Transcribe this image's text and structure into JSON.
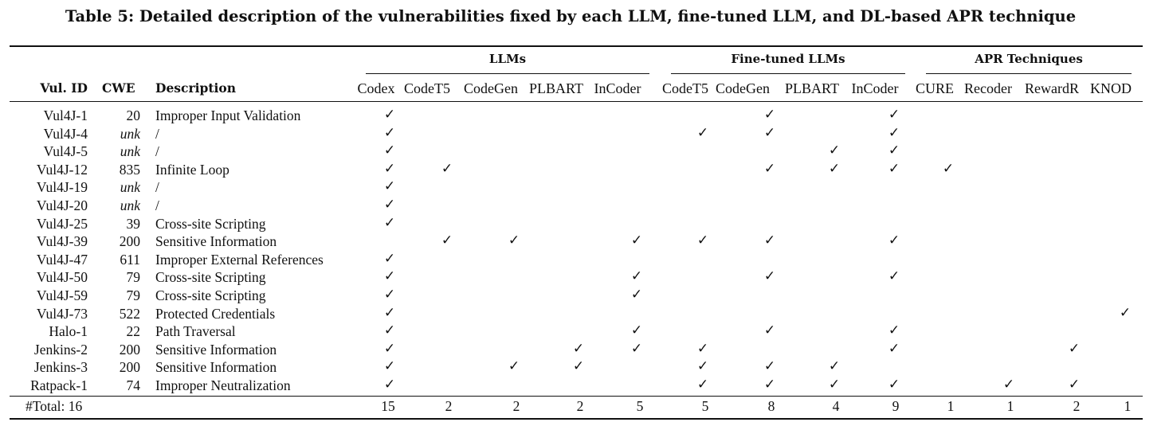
{
  "caption": "Table 5: Detailed description of the vulnerabilities fixed by each LLM, fine-tuned LLM, and DL-based APR technique",
  "groups": {
    "llms": "LLMs",
    "finetuned": "Fine-tuned LLMs",
    "apr": "APR Techniques"
  },
  "headers": {
    "vul_id": "Vul. ID",
    "cwe": "CWE",
    "description": "Description",
    "tools": [
      "Codex",
      "CodeT5",
      "CodeGen",
      "PLBART",
      "InCoder",
      "CodeT5",
      "CodeGen",
      "PLBART",
      "InCoder",
      "CURE",
      "Recoder",
      "RewardR",
      "KNOD"
    ]
  },
  "check_glyph": "✓",
  "rows": [
    {
      "id": "Vul4J-1",
      "cwe": "20",
      "unk": false,
      "desc": "Improper Input Validation",
      "fixed": [
        1,
        0,
        0,
        0,
        0,
        0,
        1,
        0,
        1,
        0,
        0,
        0,
        0
      ]
    },
    {
      "id": "Vul4J-4",
      "cwe": "unk",
      "unk": true,
      "desc": "/",
      "fixed": [
        1,
        0,
        0,
        0,
        0,
        1,
        1,
        0,
        1,
        0,
        0,
        0,
        0
      ]
    },
    {
      "id": "Vul4J-5",
      "cwe": "unk",
      "unk": true,
      "desc": "/",
      "fixed": [
        1,
        0,
        0,
        0,
        0,
        0,
        0,
        1,
        1,
        0,
        0,
        0,
        0
      ]
    },
    {
      "id": "Vul4J-12",
      "cwe": "835",
      "unk": false,
      "desc": "Infinite Loop",
      "fixed": [
        1,
        1,
        0,
        0,
        0,
        0,
        1,
        1,
        1,
        1,
        0,
        0,
        0
      ]
    },
    {
      "id": "Vul4J-19",
      "cwe": "unk",
      "unk": true,
      "desc": "/",
      "fixed": [
        1,
        0,
        0,
        0,
        0,
        0,
        0,
        0,
        0,
        0,
        0,
        0,
        0
      ]
    },
    {
      "id": "Vul4J-20",
      "cwe": "unk",
      "unk": true,
      "desc": "/",
      "fixed": [
        1,
        0,
        0,
        0,
        0,
        0,
        0,
        0,
        0,
        0,
        0,
        0,
        0
      ]
    },
    {
      "id": "Vul4J-25",
      "cwe": "39",
      "unk": false,
      "desc": "Cross-site Scripting",
      "fixed": [
        1,
        0,
        0,
        0,
        0,
        0,
        0,
        0,
        0,
        0,
        0,
        0,
        0
      ]
    },
    {
      "id": "Vul4J-39",
      "cwe": "200",
      "unk": false,
      "desc": "Sensitive Information",
      "fixed": [
        0,
        1,
        1,
        0,
        1,
        1,
        1,
        0,
        1,
        0,
        0,
        0,
        0
      ]
    },
    {
      "id": "Vul4J-47",
      "cwe": "611",
      "unk": false,
      "desc": "Improper External References",
      "fixed": [
        1,
        0,
        0,
        0,
        0,
        0,
        0,
        0,
        0,
        0,
        0,
        0,
        0
      ]
    },
    {
      "id": "Vul4J-50",
      "cwe": "79",
      "unk": false,
      "desc": "Cross-site Scripting",
      "fixed": [
        1,
        0,
        0,
        0,
        1,
        0,
        1,
        0,
        1,
        0,
        0,
        0,
        0
      ]
    },
    {
      "id": "Vul4J-59",
      "cwe": "79",
      "unk": false,
      "desc": "Cross-site Scripting",
      "fixed": [
        1,
        0,
        0,
        0,
        1,
        0,
        0,
        0,
        0,
        0,
        0,
        0,
        0
      ]
    },
    {
      "id": "Vul4J-73",
      "cwe": "522",
      "unk": false,
      "desc": "Protected Credentials",
      "fixed": [
        1,
        0,
        0,
        0,
        0,
        0,
        0,
        0,
        0,
        0,
        0,
        0,
        1
      ]
    },
    {
      "id": "Halo-1",
      "cwe": "22",
      "unk": false,
      "desc": "Path Traversal",
      "fixed": [
        1,
        0,
        0,
        0,
        1,
        0,
        1,
        0,
        1,
        0,
        0,
        0,
        0
      ]
    },
    {
      "id": "Jenkins-2",
      "cwe": "200",
      "unk": false,
      "desc": "Sensitive Information",
      "fixed": [
        1,
        0,
        0,
        1,
        1,
        1,
        0,
        0,
        1,
        0,
        0,
        1,
        0
      ]
    },
    {
      "id": "Jenkins-3",
      "cwe": "200",
      "unk": false,
      "desc": "Sensitive Information",
      "fixed": [
        1,
        0,
        1,
        1,
        0,
        1,
        1,
        1,
        0,
        0,
        0,
        0,
        0
      ]
    },
    {
      "id": "Ratpack-1",
      "cwe": "74",
      "unk": false,
      "desc": "Improper Neutralization",
      "fixed": [
        1,
        0,
        0,
        0,
        0,
        1,
        1,
        1,
        1,
        0,
        1,
        1,
        0
      ]
    }
  ],
  "totals": {
    "label": "#Total: 16",
    "values": [
      "15",
      "2",
      "2",
      "2",
      "5",
      "5",
      "8",
      "4",
      "9",
      "1",
      "1",
      "2",
      "1"
    ]
  }
}
